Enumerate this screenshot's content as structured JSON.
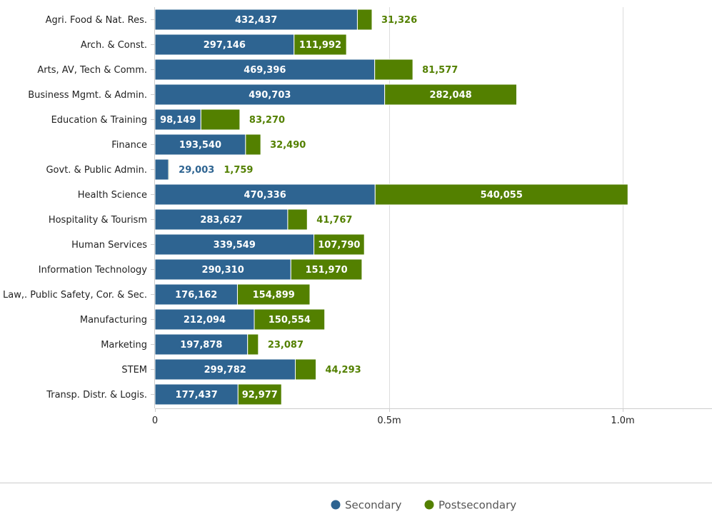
{
  "chart_data": {
    "type": "bar",
    "orientation": "horizontal",
    "stacked": true,
    "categories": [
      "Agri. Food & Nat. Res.",
      "Arch. & Const.",
      "Arts, AV, Tech & Comm.",
      "Business Mgmt. & Admin.",
      "Education & Training",
      "Finance",
      "Govt. & Public Admin.",
      "Health Science",
      "Hospitality & Tourism",
      "Human Services",
      "Information Technology",
      "Law,. Public Safety, Cor. & Sec.",
      "Manufacturing",
      "Marketing",
      "STEM",
      "Transp. Distr. & Logis."
    ],
    "series": [
      {
        "name": "Secondary",
        "color": "#2e6491",
        "values": [
          432437,
          297146,
          469396,
          490703,
          98149,
          193540,
          29003,
          470336,
          283627,
          339549,
          290310,
          176162,
          212094,
          197878,
          299782,
          177437
        ],
        "labels": [
          "432,437",
          "297,146",
          "469,396",
          "490,703",
          "98,149",
          "193,540",
          "29,003",
          "470,336",
          "283,627",
          "339,549",
          "290,310",
          "176,162",
          "212,094",
          "197,878",
          "299,782",
          "177,437"
        ]
      },
      {
        "name": "Postsecondary",
        "color": "#538000",
        "values": [
          31326,
          111992,
          81577,
          282048,
          83270,
          32490,
          1759,
          540055,
          41767,
          107790,
          151970,
          154899,
          150554,
          23087,
          44293,
          92977
        ],
        "labels": [
          "31,326",
          "111,992",
          "81,577",
          "282,048",
          "83,270",
          "32,490",
          "1,759",
          "540,055",
          "41,767",
          "107,790",
          "151,970",
          "154,899",
          "150,554",
          "23,087",
          "44,293",
          "92,977"
        ]
      }
    ],
    "x_ticks": [
      {
        "value": 0,
        "label": "0"
      },
      {
        "value": 500000,
        "label": "0.5m"
      },
      {
        "value": 1000000,
        "label": "1.0m"
      }
    ],
    "xlim": [
      0,
      1190000
    ],
    "xlabel": "",
    "ylabel": "",
    "title": "",
    "grid": true,
    "legend": "bottom-center"
  }
}
